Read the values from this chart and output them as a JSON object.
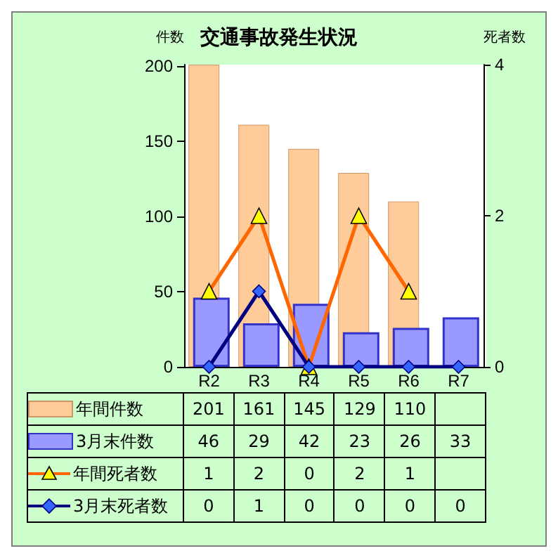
{
  "chart_data": {
    "type": "bar",
    "title": "交通事故発生状況",
    "ylabel": "件数",
    "y2label": "死者数",
    "categories": [
      "R2",
      "R3",
      "R4",
      "R5",
      "R6",
      "R7"
    ],
    "series": [
      {
        "name": "年間件数",
        "color": "#ffcc99",
        "values": [
          201,
          161,
          145,
          129,
          110,
          null
        ]
      },
      {
        "name": "3月末件数",
        "type": "bar",
        "color": "#9999ff",
        "values": [
          46,
          29,
          42,
          23,
          26,
          33
        ]
      },
      {
        "name": "年間死者数",
        "type": "line",
        "axis": "y2",
        "color": "#ff6600",
        "marker": "triangle",
        "values": [
          1,
          2,
          0,
          2,
          1,
          null
        ]
      },
      {
        "name": "3月末死者数",
        "type": "line",
        "axis": "y2",
        "color": "#000080",
        "marker": "diamond",
        "values": [
          0,
          1,
          0,
          0,
          0,
          0
        ]
      }
    ],
    "ylim": [
      0,
      201
    ],
    "yticks": [
      0,
      50,
      100,
      150,
      200
    ],
    "y2lim": [
      0,
      4
    ],
    "y2ticks": [
      0,
      2,
      4
    ],
    "grid": false,
    "legend": "bottom",
    "data_labels": true
  }
}
